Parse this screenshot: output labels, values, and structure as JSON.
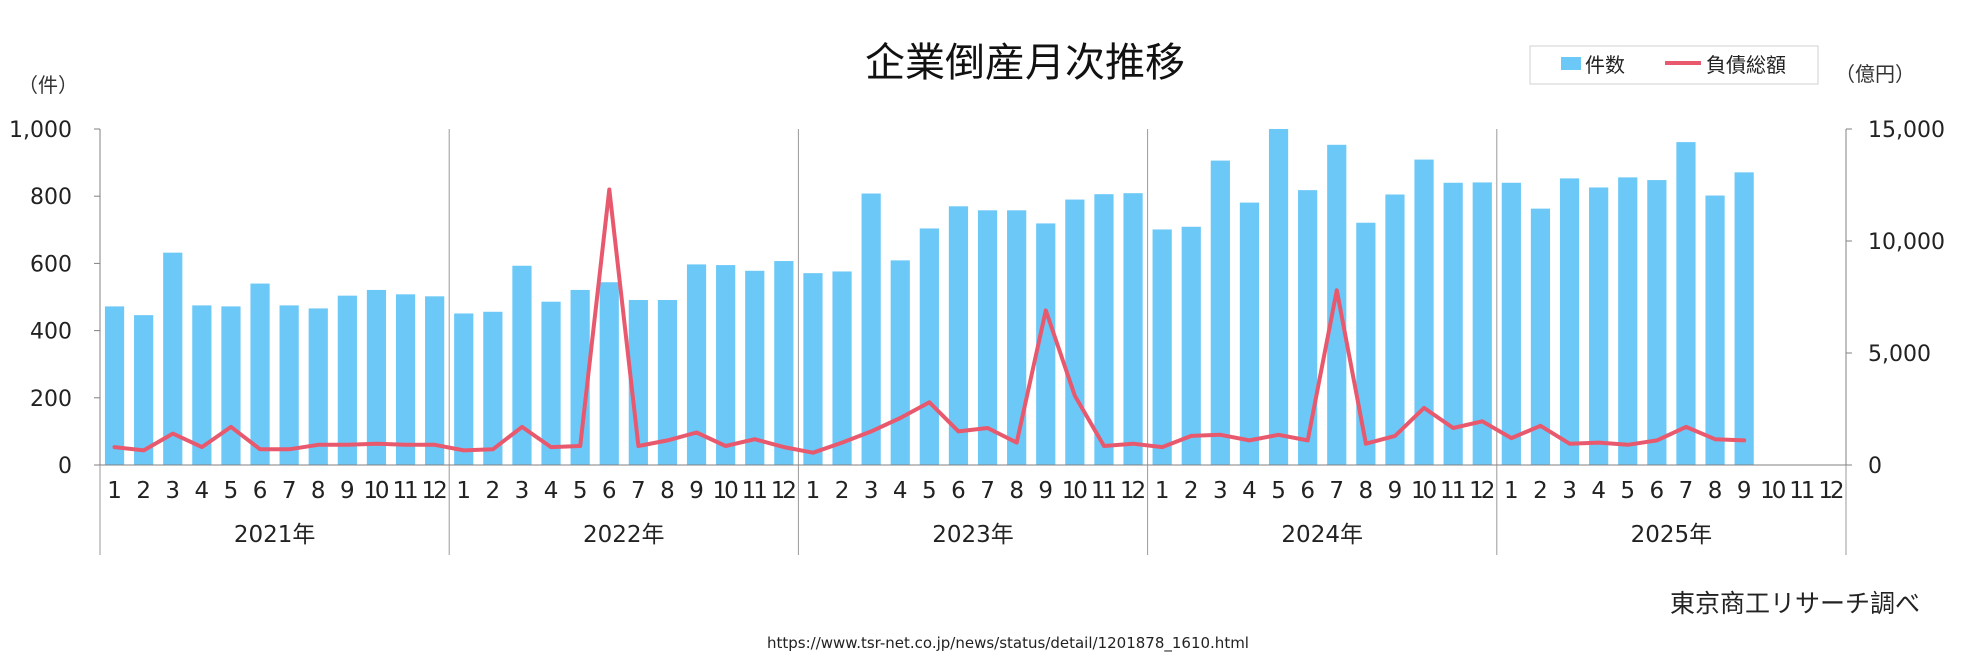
{
  "chart_data": {
    "type": "bar+line",
    "title": "企業倒産月次推移",
    "left_unit": "（件）",
    "right_unit": "（億円）",
    "y_left": {
      "min": 0,
      "max": 1000,
      "ticks": [
        "0",
        "200",
        "400",
        "600",
        "800",
        "1,000"
      ]
    },
    "y_right": {
      "min": 0,
      "max": 15000,
      "ticks": [
        "0",
        "5,000",
        "10,000",
        "15,000"
      ]
    },
    "years": [
      "2021年",
      "2022年",
      "2023年",
      "2024年",
      "2025年"
    ],
    "month_labels": [
      "1",
      "2",
      "3",
      "4",
      "5",
      "6",
      "7",
      "8",
      "9",
      "10",
      "11",
      "12"
    ],
    "grid": false,
    "legend_position": "top-right",
    "series": [
      {
        "name": "件数",
        "kind": "bar",
        "axis": "left",
        "color": "#6cc8f7",
        "values": [
          472,
          446,
          632,
          475,
          472,
          540,
          475,
          466,
          504,
          521,
          508,
          502,
          451,
          456,
          593,
          486,
          521,
          544,
          491,
          491,
          597,
          595,
          578,
          607,
          571,
          576,
          808,
          609,
          704,
          770,
          758,
          758,
          719,
          790,
          806,
          809,
          701,
          709,
          906,
          781,
          1009,
          818,
          953,
          721,
          805,
          909,
          840,
          841,
          840,
          763,
          853,
          826,
          856,
          848,
          961,
          802,
          871,
          null,
          null,
          null
        ]
      },
      {
        "name": "負債総額",
        "kind": "line",
        "axis": "right",
        "color": "#e8596e",
        "values": [
          800,
          650,
          1400,
          800,
          1700,
          700,
          700,
          900,
          900,
          950,
          900,
          900,
          650,
          700,
          1700,
          800,
          850,
          12300,
          850,
          1100,
          1450,
          850,
          1150,
          800,
          550,
          1000,
          1500,
          2100,
          2800,
          1500,
          1650,
          1000,
          6900,
          3100,
          850,
          950,
          800,
          1300,
          1350,
          1100,
          1350,
          1100,
          7800,
          950,
          1300,
          2550,
          1650,
          1950,
          1200,
          1750,
          950,
          1000,
          900,
          1100,
          1700,
          1150,
          1100,
          null,
          null,
          null
        ]
      }
    ]
  },
  "source_note": "東京商工リサーチ調べ",
  "url_note": "https://www.tsr-net.co.jp/news/status/detail/1201878_1610.html"
}
